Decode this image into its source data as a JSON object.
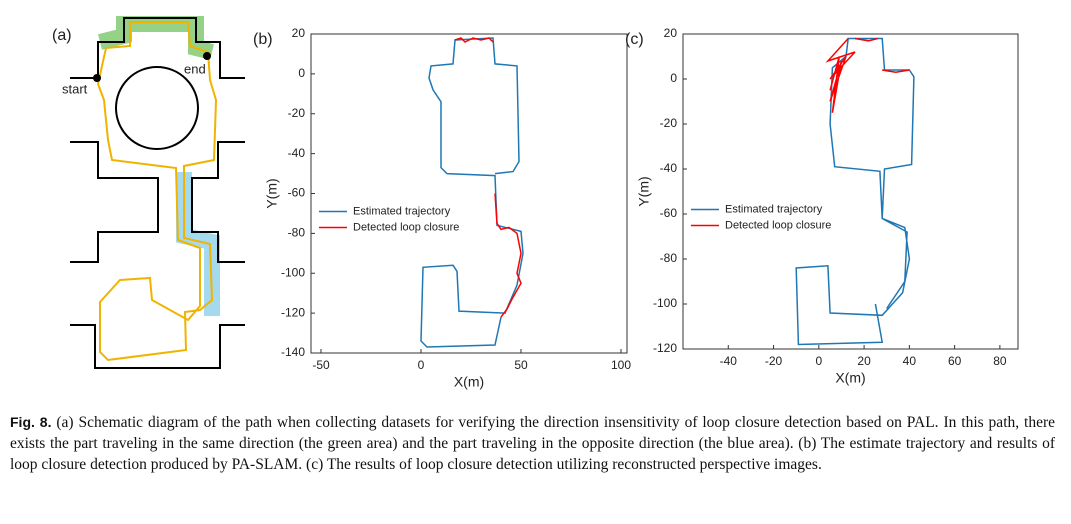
{
  "diagram": {
    "panel_label": "(a)",
    "start_label": "start",
    "end_label": "end"
  },
  "chart_data": [
    {
      "type": "line",
      "panel_label": "(b)",
      "xlabel": "X(m)",
      "ylabel": "Y(m)",
      "xlim": [
        -55,
        103
      ],
      "ylim": [
        -140,
        20
      ],
      "xticks": [
        -50,
        0,
        50,
        100
      ],
      "yticks": [
        -140,
        -120,
        -100,
        -80,
        -60,
        -40,
        -20,
        0,
        20
      ],
      "legend": "center-left",
      "series": [
        {
          "name": "Estimated trajectory",
          "color": "#1f77b4",
          "x": [
            40,
            37,
            3,
            0,
            1,
            16,
            18,
            19,
            42,
            48,
            51,
            50,
            38,
            37,
            13,
            10,
            10,
            6,
            4,
            5,
            16,
            17,
            36,
            37,
            48,
            49,
            46,
            37
          ],
          "y": [
            -122,
            -136,
            -137,
            -134,
            -97,
            -96,
            -99,
            -119,
            -120,
            -106,
            -90,
            -79,
            -76,
            -51,
            -50,
            -47,
            -14,
            -8,
            -2,
            4,
            5,
            17,
            18,
            5,
            4,
            -44,
            -49,
            -50
          ]
        },
        {
          "name": "Detected loop closure",
          "color": "#ff0000",
          "x": [
            17,
            20,
            22,
            26,
            30,
            34,
            36,
            null,
            37,
            38,
            40,
            44,
            48,
            50,
            48,
            50,
            46,
            43,
            40
          ],
          "y": [
            17,
            18,
            16,
            18,
            17,
            18,
            16,
            null,
            -60,
            -75,
            -78,
            -77,
            -80,
            -90,
            -100,
            -105,
            -112,
            -118,
            -122
          ]
        }
      ]
    },
    {
      "type": "line",
      "panel_label": "(c)",
      "xlabel": "X(m)",
      "ylabel": "Y(m)",
      "xlim": [
        -60,
        88
      ],
      "ylim": [
        -120,
        20
      ],
      "xticks": [
        -40,
        -20,
        0,
        20,
        40,
        60,
        80
      ],
      "yticks": [
        -120,
        -100,
        -80,
        -60,
        -40,
        -20,
        0,
        20
      ],
      "legend": "center-left",
      "series": [
        {
          "name": "Estimated trajectory",
          "color": "#1f77b4",
          "x": [
            25,
            28,
            -9,
            -10,
            4,
            5,
            28,
            37,
            40,
            38,
            28,
            27,
            7,
            5,
            6,
            12,
            13,
            28,
            29,
            40,
            42,
            41,
            29,
            28,
            39,
            38,
            30
          ],
          "y": [
            -100,
            -117,
            -118,
            -84,
            -83,
            -104,
            -105,
            -95,
            -80,
            -66,
            -62,
            -41,
            -39,
            -20,
            5,
            10,
            18,
            18,
            4,
            4,
            1,
            -38,
            -40,
            -62,
            -68,
            -90,
            -102
          ]
        },
        {
          "name": "Detected loop closure",
          "color": "#ff0000",
          "x": [
            13,
            4,
            16,
            5,
            12,
            5,
            10,
            6,
            9,
            5,
            null,
            16,
            22,
            26,
            null,
            28,
            34,
            40
          ],
          "y": [
            18,
            8,
            12,
            0,
            10,
            -10,
            8,
            -15,
            10,
            -5,
            null,
            18,
            17,
            18,
            null,
            4,
            3,
            4
          ]
        }
      ]
    }
  ],
  "caption": {
    "label": "Fig. 8.",
    "text": "(a) Schematic diagram of the path when collecting datasets for verifying the direction insensitivity of loop closure detection based on PAL. In this path, there exists the part traveling in the same direction (the green area) and the part traveling in the opposite direction (the blue area). (b) The estimate trajectory and results of loop closure detection produced by PA-SLAM. (c) The results of loop closure detection utilizing reconstructed perspective images."
  }
}
